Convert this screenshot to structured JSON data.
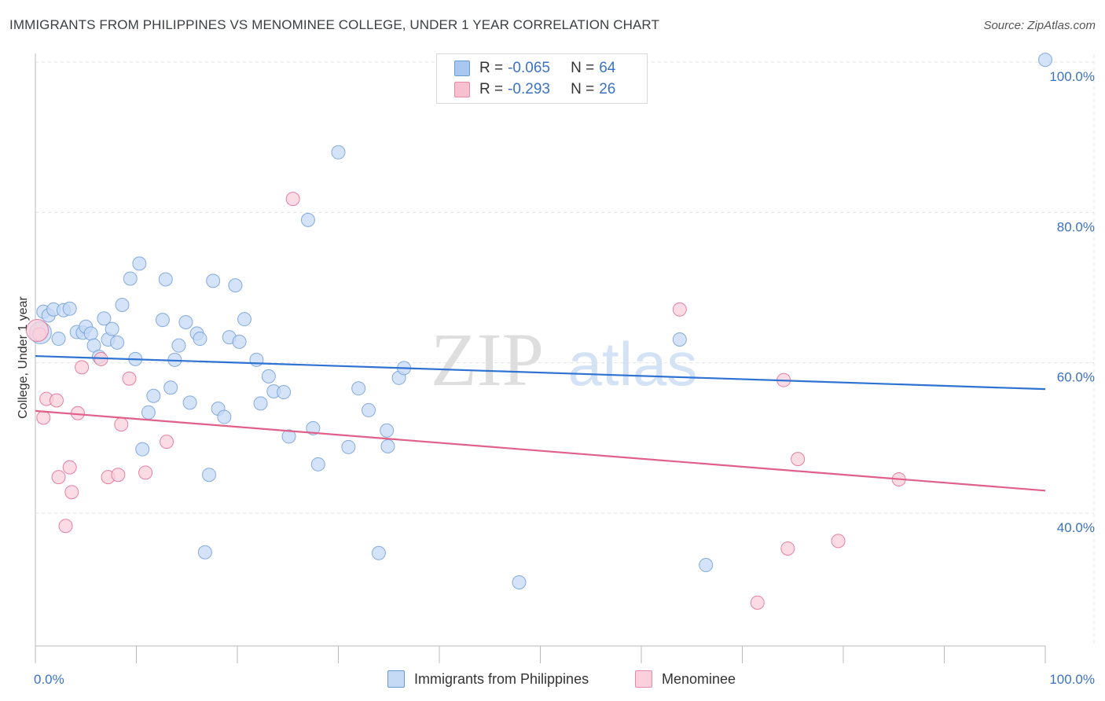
{
  "header": {
    "title": "IMMIGRANTS FROM PHILIPPINES VS MENOMINEE COLLEGE, UNDER 1 YEAR CORRELATION CHART",
    "source": "Source: ZipAtlas.com"
  },
  "watermark": {
    "zip": "ZIP",
    "atlas": "atlas"
  },
  "legend": {
    "rows": [
      {
        "r_label": "R =",
        "r_value": "-0.065",
        "n_label": "N =",
        "n_value": "64",
        "color": "#a9c8f0",
        "border": "#6a9ad6"
      },
      {
        "r_label": "R =",
        "r_value": "-0.293",
        "n_label": "N =",
        "n_value": "26",
        "color": "#f7c0d0",
        "border": "#e48aa6"
      }
    ]
  },
  "bottom_legend": [
    {
      "label": "Immigrants from Philippines",
      "color": "#c5daf5",
      "border": "#6a9ad6"
    },
    {
      "label": "Menominee",
      "color": "#f9d0dc",
      "border": "#e48aa6"
    }
  ],
  "chart_data": {
    "type": "scatter",
    "title": "IMMIGRANTS FROM PHILIPPINES VS MENOMINEE COLLEGE, UNDER 1 YEAR CORRELATION CHART",
    "xlabel": "",
    "ylabel": "College, Under 1 year",
    "xlim": [
      0,
      100
    ],
    "ylim": [
      20,
      102
    ],
    "x_tick_labels": [
      "0.0%",
      "100.0%"
    ],
    "y_ticks": [
      {
        "value": 100,
        "label": "100.0%"
      },
      {
        "value": 80,
        "label": "80.0%"
      },
      {
        "value": 60,
        "label": "60.0%"
      },
      {
        "value": 40,
        "label": "40.0%"
      }
    ],
    "grid": true,
    "series": [
      {
        "name": "Immigrants from Philippines",
        "color": "#6a9ad6",
        "fill": "#c5daf5",
        "trend": [
          [
            0,
            60.9
          ],
          [
            100,
            56.5
          ]
        ],
        "points": [
          [
            0.5,
            64.0
          ],
          [
            0.8,
            66.8
          ],
          [
            1.3,
            66.3
          ],
          [
            1.8,
            67.1
          ],
          [
            2.3,
            63.2
          ],
          [
            2.8,
            67.0
          ],
          [
            3.4,
            67.2
          ],
          [
            4.1,
            64.1
          ],
          [
            4.7,
            64.0
          ],
          [
            5.0,
            64.8
          ],
          [
            5.5,
            63.9
          ],
          [
            5.8,
            62.3
          ],
          [
            6.3,
            60.8
          ],
          [
            6.8,
            65.9
          ],
          [
            7.2,
            63.1
          ],
          [
            7.6,
            64.5
          ],
          [
            8.1,
            62.7
          ],
          [
            8.6,
            67.7
          ],
          [
            9.4,
            71.2
          ],
          [
            9.9,
            60.5
          ],
          [
            10.3,
            73.2
          ],
          [
            10.6,
            48.5
          ],
          [
            11.2,
            53.4
          ],
          [
            11.7,
            55.6
          ],
          [
            12.6,
            65.7
          ],
          [
            12.9,
            71.1
          ],
          [
            13.4,
            56.7
          ],
          [
            13.8,
            60.4
          ],
          [
            14.2,
            62.3
          ],
          [
            14.9,
            65.4
          ],
          [
            15.3,
            54.7
          ],
          [
            16.0,
            63.9
          ],
          [
            16.3,
            63.2
          ],
          [
            16.8,
            34.8
          ],
          [
            17.2,
            45.1
          ],
          [
            17.6,
            70.9
          ],
          [
            18.1,
            53.9
          ],
          [
            18.7,
            52.8
          ],
          [
            19.2,
            63.4
          ],
          [
            19.8,
            70.3
          ],
          [
            20.2,
            62.8
          ],
          [
            20.7,
            65.8
          ],
          [
            21.9,
            60.4
          ],
          [
            22.3,
            54.6
          ],
          [
            23.1,
            58.2
          ],
          [
            23.6,
            56.2
          ],
          [
            24.6,
            56.1
          ],
          [
            25.1,
            50.2
          ],
          [
            27.0,
            79.0
          ],
          [
            27.5,
            51.3
          ],
          [
            28.0,
            46.5
          ],
          [
            30.0,
            88.0
          ],
          [
            31.0,
            48.8
          ],
          [
            32.0,
            56.6
          ],
          [
            33.0,
            53.7
          ],
          [
            34.0,
            34.7
          ],
          [
            34.8,
            51.0
          ],
          [
            34.9,
            48.9
          ],
          [
            36.0,
            58.0
          ],
          [
            36.5,
            59.3
          ],
          [
            47.9,
            30.8
          ],
          [
            63.8,
            63.1
          ],
          [
            66.4,
            33.1
          ],
          [
            100.0,
            100.3
          ]
        ]
      },
      {
        "name": "Menominee",
        "color": "#e06590",
        "fill": "#f9d0dc",
        "trend": [
          [
            0,
            53.6
          ],
          [
            100,
            43.0
          ]
        ],
        "points": [
          [
            0.4,
            63.8
          ],
          [
            0.8,
            52.7
          ],
          [
            1.1,
            55.2
          ],
          [
            2.1,
            55.0
          ],
          [
            2.3,
            44.8
          ],
          [
            3.0,
            38.3
          ],
          [
            3.4,
            46.1
          ],
          [
            3.6,
            42.8
          ],
          [
            4.2,
            53.3
          ],
          [
            4.6,
            59.4
          ],
          [
            6.5,
            60.5
          ],
          [
            7.2,
            44.8
          ],
          [
            8.2,
            45.1
          ],
          [
            8.5,
            51.8
          ],
          [
            9.3,
            57.9
          ],
          [
            10.9,
            45.4
          ],
          [
            13.0,
            49.5
          ],
          [
            25.5,
            81.8
          ],
          [
            63.8,
            67.1
          ],
          [
            71.5,
            28.1
          ],
          [
            74.1,
            57.7
          ],
          [
            74.5,
            35.3
          ],
          [
            75.5,
            47.2
          ],
          [
            79.5,
            36.3
          ],
          [
            85.5,
            44.5
          ],
          [
            0.2,
            64.3
          ]
        ]
      }
    ]
  }
}
